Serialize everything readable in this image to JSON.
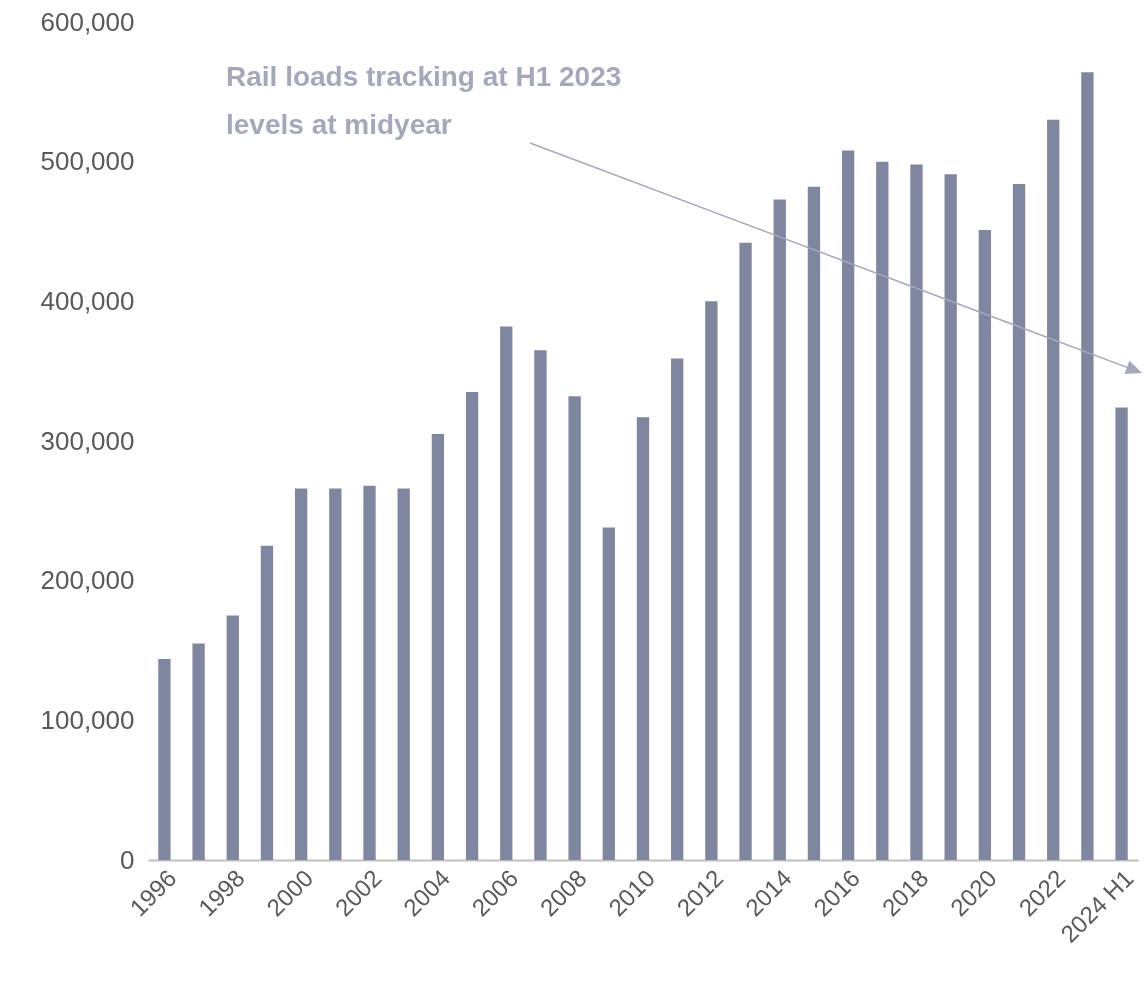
{
  "chart_data": {
    "type": "bar",
    "categories": [
      "1996",
      null,
      "1998",
      null,
      "2000",
      null,
      "2002",
      null,
      "2004",
      null,
      "2006",
      null,
      "2008",
      null,
      "2010",
      null,
      "2012",
      null,
      "2014",
      null,
      "2016",
      null,
      "2018",
      null,
      "2020",
      null,
      "2022",
      null,
      "2024 H1"
    ],
    "values": [
      144000,
      155000,
      175000,
      225000,
      266000,
      266000,
      268000,
      266000,
      305000,
      335000,
      382000,
      365000,
      332000,
      238000,
      317000,
      359000,
      400000,
      442000,
      473000,
      482000,
      508000,
      500000,
      498000,
      491000,
      451000,
      484000,
      530000,
      564000,
      324000
    ],
    "color": "#7f869f",
    "ylim": [
      0,
      600000
    ],
    "yticks": [
      0,
      {
        "value": 100000,
        "label": "100,000"
      },
      {
        "value": 200000,
        "label": "200,000"
      },
      {
        "value": 300000,
        "label": "300,000"
      },
      {
        "value": 400000,
        "label": "400,000"
      },
      {
        "value": 500000,
        "label": "500,000"
      },
      {
        "value": 600000,
        "label": "600,000"
      }
    ],
    "grid": false,
    "annotations": [
      "Rail loads tracking at H1 2023 levels at midyear"
    ]
  }
}
